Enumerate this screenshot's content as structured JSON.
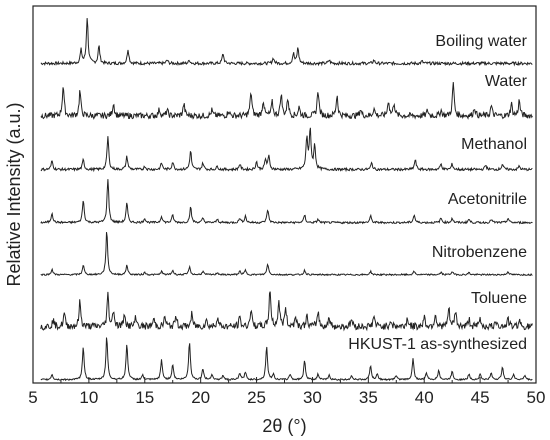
{
  "chart_data": {
    "type": "line",
    "xlabel": "2θ (°)",
    "ylabel": "Relative Intensity (a.u.)",
    "xlim": [
      5,
      50
    ],
    "x_ticks": [
      "5",
      "10",
      "15",
      "20",
      "25",
      "30",
      "35",
      "40",
      "45",
      "50"
    ],
    "y_ticks_shown": false,
    "legend": "none (series labels printed inline at the right of each trace)",
    "grid": false,
    "line_color": "#222222",
    "series": [
      {
        "name": "Boiling water",
        "baseline": 0.3,
        "peaks": [
          [
            9.3,
            1.2
          ],
          [
            9.85,
            4.2
          ],
          [
            10.9,
            1.6
          ],
          [
            13.5,
            1.3
          ],
          [
            17.0,
            0.3
          ],
          [
            19.0,
            0.3
          ],
          [
            22.0,
            0.9
          ],
          [
            26.5,
            0.5
          ],
          [
            28.3,
            0.9
          ],
          [
            28.7,
            1.4
          ],
          [
            31.5,
            0.3
          ],
          [
            35.5,
            0.3
          ],
          [
            39.8,
            0.2
          ]
        ]
      },
      {
        "name": "Water",
        "baseline": 0.6,
        "peaks": [
          [
            7.7,
            2.8
          ],
          [
            9.2,
            2.3
          ],
          [
            12.2,
            1.2
          ],
          [
            16.3,
            0.6
          ],
          [
            17.0,
            0.5
          ],
          [
            18.5,
            1.1
          ],
          [
            21.0,
            0.5
          ],
          [
            22.5,
            0.5
          ],
          [
            24.5,
            2.2
          ],
          [
            25.6,
            1.4
          ],
          [
            26.4,
            1.2
          ],
          [
            27.2,
            2.0
          ],
          [
            27.8,
            1.6
          ],
          [
            28.8,
            0.8
          ],
          [
            30.5,
            2.4
          ],
          [
            32.2,
            1.9
          ],
          [
            34.3,
            0.6
          ],
          [
            35.5,
            0.7
          ],
          [
            36.8,
            1.4
          ],
          [
            37.3,
            1.2
          ],
          [
            40.3,
            0.5
          ],
          [
            41.5,
            0.5
          ],
          [
            42.6,
            3.0
          ],
          [
            44.5,
            0.8
          ],
          [
            46.0,
            0.9
          ],
          [
            47.8,
            1.1
          ],
          [
            48.5,
            1.4
          ]
        ]
      },
      {
        "name": "Methanol",
        "baseline": 0.25,
        "peaks": [
          [
            6.7,
            0.8
          ],
          [
            9.5,
            0.9
          ],
          [
            11.7,
            3.0
          ],
          [
            13.4,
            1.2
          ],
          [
            15.0,
            0.3
          ],
          [
            16.5,
            0.6
          ],
          [
            17.5,
            0.7
          ],
          [
            19.1,
            1.7
          ],
          [
            20.2,
            0.6
          ],
          [
            21.5,
            0.3
          ],
          [
            23.5,
            0.5
          ],
          [
            25.0,
            0.7
          ],
          [
            25.8,
            0.9
          ],
          [
            26.1,
            1.2
          ],
          [
            29.5,
            2.9
          ],
          [
            29.8,
            3.6
          ],
          [
            30.2,
            2.2
          ],
          [
            35.3,
            0.6
          ],
          [
            39.2,
            0.9
          ],
          [
            41.5,
            0.5
          ],
          [
            42.5,
            0.5
          ],
          [
            45.5,
            0.4
          ],
          [
            47.0,
            0.5
          ],
          [
            48.5,
            0.3
          ]
        ]
      },
      {
        "name": "Acetonitrile",
        "baseline": 0.2,
        "peaks": [
          [
            6.7,
            0.9
          ],
          [
            9.5,
            2.1
          ],
          [
            11.7,
            4.0
          ],
          [
            13.4,
            1.8
          ],
          [
            15.0,
            0.4
          ],
          [
            16.5,
            0.6
          ],
          [
            17.5,
            0.7
          ],
          [
            19.1,
            1.4
          ],
          [
            20.2,
            0.4
          ],
          [
            21.5,
            0.3
          ],
          [
            23.5,
            0.4
          ],
          [
            24.0,
            0.6
          ],
          [
            26.0,
            1.2
          ],
          [
            29.3,
            0.7
          ],
          [
            30.5,
            0.3
          ],
          [
            35.2,
            0.6
          ],
          [
            39.1,
            0.7
          ],
          [
            41.5,
            0.4
          ],
          [
            42.5,
            0.4
          ],
          [
            44.0,
            0.3
          ],
          [
            46.0,
            0.3
          ],
          [
            47.5,
            0.4
          ]
        ]
      },
      {
        "name": "Nitrobenzene",
        "baseline": 0.15,
        "peaks": [
          [
            6.7,
            0.5
          ],
          [
            9.5,
            0.9
          ],
          [
            11.6,
            4.0
          ],
          [
            13.4,
            0.9
          ],
          [
            15.0,
            0.2
          ],
          [
            16.5,
            0.3
          ],
          [
            17.5,
            0.4
          ],
          [
            19.0,
            0.7
          ],
          [
            20.2,
            0.3
          ],
          [
            21.5,
            0.2
          ],
          [
            23.5,
            0.3
          ],
          [
            24.0,
            0.4
          ],
          [
            26.0,
            1.0
          ],
          [
            29.3,
            0.4
          ],
          [
            35.2,
            0.3
          ],
          [
            39.1,
            0.3
          ],
          [
            41.5,
            0.2
          ],
          [
            42.5,
            0.3
          ],
          [
            44.0,
            0.2
          ],
          [
            47.5,
            0.3
          ]
        ]
      },
      {
        "name": "Toluene",
        "baseline": 0.7,
        "peaks": [
          [
            6.8,
            0.6
          ],
          [
            7.8,
            1.2
          ],
          [
            9.2,
            2.3
          ],
          [
            11.7,
            2.9
          ],
          [
            12.2,
            1.5
          ],
          [
            13.2,
            1.2
          ],
          [
            14.2,
            0.9
          ],
          [
            15.8,
            0.7
          ],
          [
            16.8,
            0.9
          ],
          [
            17.8,
            1.0
          ],
          [
            19.2,
            1.1
          ],
          [
            20.5,
            0.6
          ],
          [
            21.5,
            0.9
          ],
          [
            23.5,
            0.8
          ],
          [
            24.5,
            1.6
          ],
          [
            26.2,
            3.5
          ],
          [
            27.0,
            2.3
          ],
          [
            27.6,
            1.7
          ],
          [
            28.5,
            1.0
          ],
          [
            29.5,
            0.9
          ],
          [
            30.5,
            1.4
          ],
          [
            31.5,
            0.8
          ],
          [
            33.5,
            0.7
          ],
          [
            35.5,
            1.0
          ],
          [
            37.0,
            0.6
          ],
          [
            38.5,
            0.8
          ],
          [
            40.0,
            0.9
          ],
          [
            41.0,
            1.2
          ],
          [
            42.2,
            1.6
          ],
          [
            42.8,
            1.4
          ],
          [
            44.0,
            0.7
          ],
          [
            45.0,
            0.7
          ],
          [
            46.5,
            0.6
          ],
          [
            47.5,
            0.7
          ],
          [
            48.5,
            0.6
          ]
        ]
      },
      {
        "name": "HKUST-1 as-synthesized",
        "baseline": 0.15,
        "peaks": [
          [
            6.7,
            0.5
          ],
          [
            9.5,
            3.0
          ],
          [
            11.6,
            4.0
          ],
          [
            13.4,
            3.3
          ],
          [
            14.8,
            0.4
          ],
          [
            16.5,
            1.8
          ],
          [
            17.5,
            1.4
          ],
          [
            19.0,
            3.5
          ],
          [
            20.2,
            1.0
          ],
          [
            21.0,
            0.5
          ],
          [
            22.0,
            0.4
          ],
          [
            23.5,
            0.6
          ],
          [
            24.0,
            0.7
          ],
          [
            25.9,
            3.1
          ],
          [
            26.5,
            0.5
          ],
          [
            28.0,
            0.5
          ],
          [
            29.3,
            1.8
          ],
          [
            30.5,
            0.5
          ],
          [
            31.5,
            0.4
          ],
          [
            33.5,
            0.4
          ],
          [
            35.2,
            1.3
          ],
          [
            35.8,
            0.5
          ],
          [
            37.5,
            0.4
          ],
          [
            39.0,
            1.9
          ],
          [
            40.2,
            0.6
          ],
          [
            41.3,
            0.9
          ],
          [
            42.5,
            0.8
          ],
          [
            44.0,
            0.5
          ],
          [
            45.0,
            0.5
          ],
          [
            46.0,
            0.6
          ],
          [
            47.0,
            1.2
          ],
          [
            48.0,
            0.5
          ],
          [
            49.0,
            0.4
          ]
        ]
      }
    ]
  }
}
